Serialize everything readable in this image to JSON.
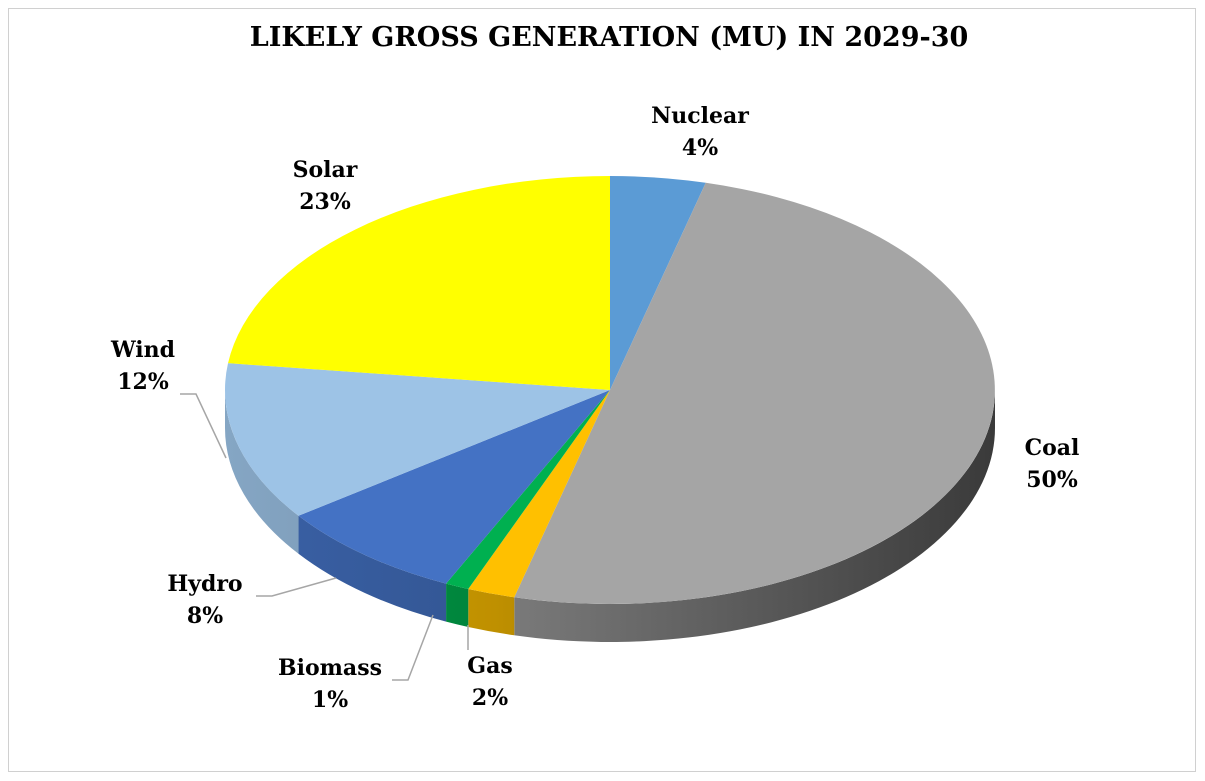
{
  "chart_data": {
    "type": "pie",
    "style": "3d",
    "title": "LIKELY GROSS GENERATION (MU) IN 2029-30",
    "start": "12 o'clock, clockwise",
    "slices": [
      {
        "name": "Nuclear",
        "value": 4,
        "label": "4%",
        "color": "#5b9bd5"
      },
      {
        "name": "Coal",
        "value": 50,
        "label": "50%",
        "color": "#a5a5a5"
      },
      {
        "name": "Gas",
        "value": 2,
        "label": "2%",
        "color": "#ffc000"
      },
      {
        "name": "Biomass",
        "value": 1,
        "label": "1%",
        "color": "#00b050"
      },
      {
        "name": "Hydro",
        "value": 8,
        "label": "8%",
        "color": "#4472c4"
      },
      {
        "name": "Wind",
        "value": 12,
        "label": "12%",
        "color": "#9dc3e6"
      },
      {
        "name": "Solar",
        "value": 23,
        "label": "23%",
        "color": "#ffff00"
      }
    ],
    "legend": "none"
  }
}
